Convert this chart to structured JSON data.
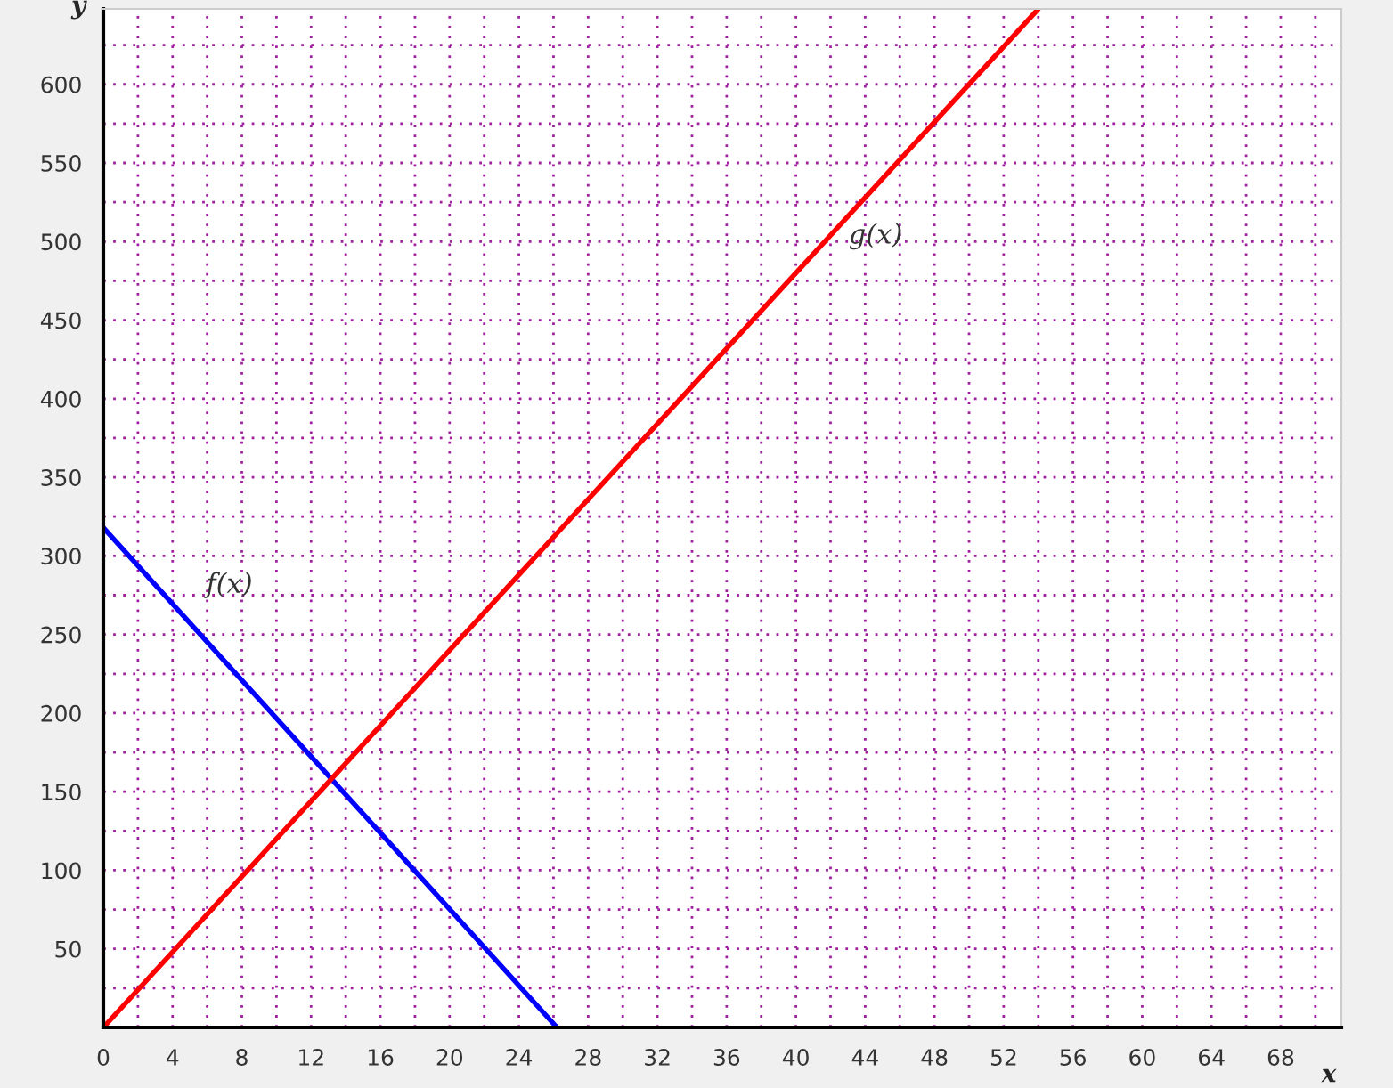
{
  "chart_data": {
    "type": "line",
    "xlabel": "x",
    "ylabel": "y",
    "xlim": [
      0,
      71.5
    ],
    "ylim": [
      0,
      648
    ],
    "xticks": [
      0,
      4,
      8,
      12,
      16,
      20,
      24,
      28,
      32,
      36,
      40,
      44,
      48,
      52,
      56,
      60,
      64,
      68
    ],
    "yticks": [
      50,
      100,
      150,
      200,
      250,
      300,
      350,
      400,
      450,
      500,
      550,
      600
    ],
    "grid": true,
    "legend": false,
    "marker": "none",
    "line_style": "solid",
    "series": [
      {
        "name": "f(x)",
        "color": "#0000ff",
        "x": [
          0,
          26.2
        ],
        "values": [
          318,
          0
        ]
      },
      {
        "name": "g(x)",
        "color": "#ff0000",
        "x": [
          0,
          54
        ],
        "values": [
          0,
          648
        ]
      }
    ]
  }
}
